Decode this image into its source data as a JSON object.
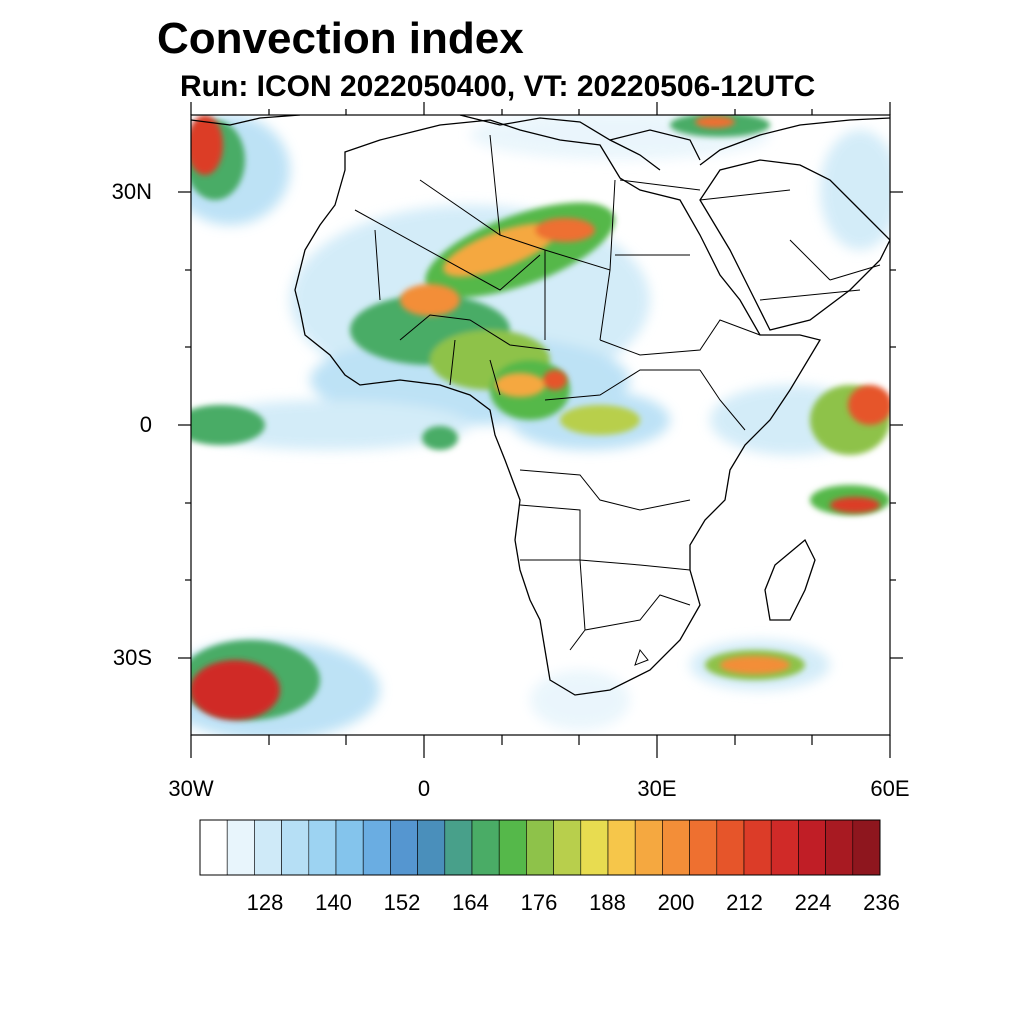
{
  "title": "Convection index",
  "subtitle": "Run: ICON 2022050400,  VT: 20220506-12UTC",
  "map": {
    "lon_range": [
      -30,
      60
    ],
    "lat_range": [
      -40,
      40
    ],
    "y_tick_labels": [
      "30N",
      "0",
      "30S"
    ],
    "x_tick_labels": [
      "30W",
      "0",
      "30E",
      "60E"
    ]
  },
  "colorbar": {
    "labels": [
      "128",
      "140",
      "152",
      "164",
      "176",
      "188",
      "200",
      "212",
      "224",
      "236"
    ],
    "colors": [
      "#ffffff",
      "#e8f5fc",
      "#cfeaf8",
      "#b6dff5",
      "#9dd3f2",
      "#84c4ec",
      "#6aade2",
      "#5596d0",
      "#4a8fbb",
      "#48a08a",
      "#4aac66",
      "#55b84a",
      "#8ec24a",
      "#b8cf4c",
      "#e8dc50",
      "#f6c64a",
      "#f5a840",
      "#f38e38",
      "#ee7030",
      "#e6552a",
      "#dc3c28",
      "#d02a28",
      "#c01e26",
      "#a81a22",
      "#8e161e"
    ]
  }
}
